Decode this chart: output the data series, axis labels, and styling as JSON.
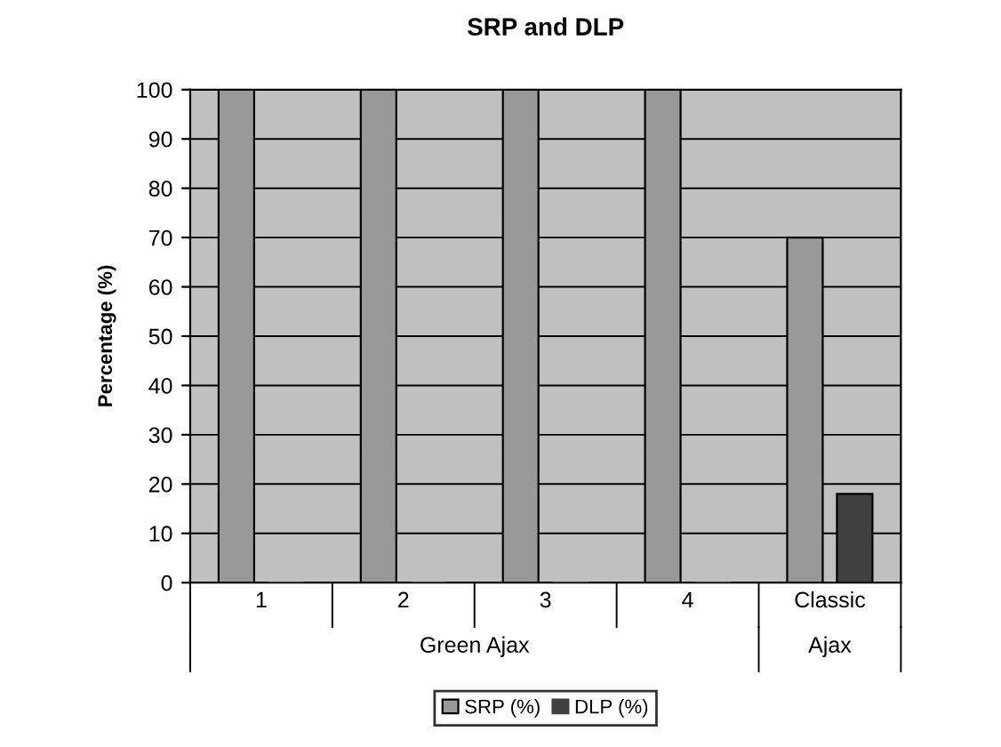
{
  "chart_data": {
    "type": "bar",
    "title": "SRP and DLP",
    "ylabel": "Percentage (%)",
    "categories": [
      "1",
      "2",
      "3",
      "4",
      "Classic"
    ],
    "annotations": [
      "Green Ajax",
      "Ajax"
    ],
    "series": [
      {
        "name": "SRP (%)",
        "color": "#999999",
        "values": [
          100,
          100,
          100,
          100,
          70
        ]
      },
      {
        "name": "DLP (%)",
        "color": "#404040",
        "values": [
          0,
          0,
          0,
          0,
          18
        ]
      }
    ],
    "ylim": [
      0,
      100
    ],
    "yticks": [
      0,
      10,
      20,
      30,
      40,
      50,
      60,
      70,
      80,
      90,
      100
    ],
    "grid": "y",
    "legend": "bottom"
  }
}
